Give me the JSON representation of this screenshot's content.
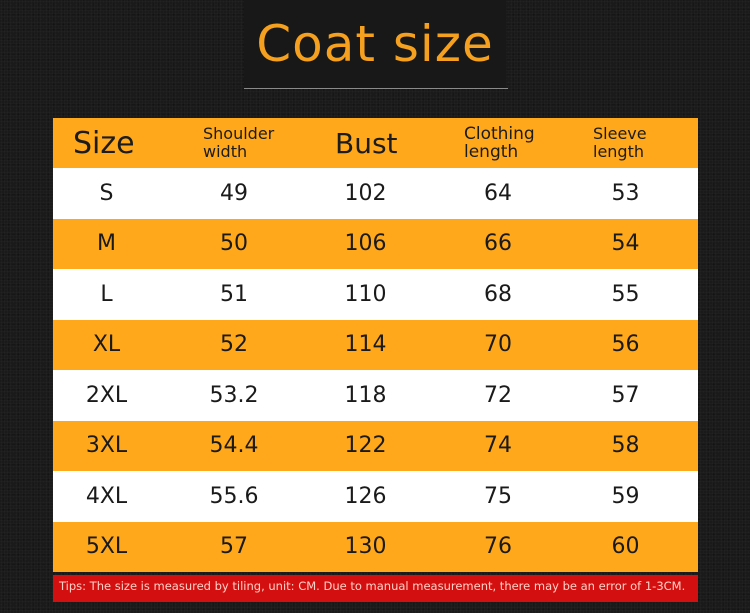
{
  "title": "Coat size",
  "headers": {
    "size": "Size",
    "shoulder": "Shoulder\nwidth",
    "bust": "Bust",
    "clothing": "Clothing\nlength",
    "sleeve": "Sleeve\nlength"
  },
  "rows": [
    {
      "size": "S",
      "shoulder": "49",
      "bust": "102",
      "clothing": "64",
      "sleeve": "53"
    },
    {
      "size": "M",
      "shoulder": "50",
      "bust": "106",
      "clothing": "66",
      "sleeve": "54"
    },
    {
      "size": "L",
      "shoulder": "51",
      "bust": "110",
      "clothing": "68",
      "sleeve": "55"
    },
    {
      "size": "XL",
      "shoulder": "52",
      "bust": "114",
      "clothing": "70",
      "sleeve": "56"
    },
    {
      "size": "2XL",
      "shoulder": "53.2",
      "bust": "118",
      "clothing": "72",
      "sleeve": "57"
    },
    {
      "size": "3XL",
      "shoulder": "54.4",
      "bust": "122",
      "clothing": "74",
      "sleeve": "58"
    },
    {
      "size": "4XL",
      "shoulder": "55.6",
      "bust": "126",
      "clothing": "75",
      "sleeve": "59"
    },
    {
      "size": "5XL",
      "shoulder": "57",
      "bust": "130",
      "clothing": "76",
      "sleeve": "60"
    }
  ],
  "tips": "Tips: The size is measured by tiling, unit: CM. Due to manual measurement, there may be an error of 1-3CM.",
  "colors": {
    "title": "#f5a01e",
    "orange_row": "#ffa81c",
    "white_row": "#ffffff",
    "tips_bg": "#d40f0f",
    "background": "#1a1a1a"
  }
}
